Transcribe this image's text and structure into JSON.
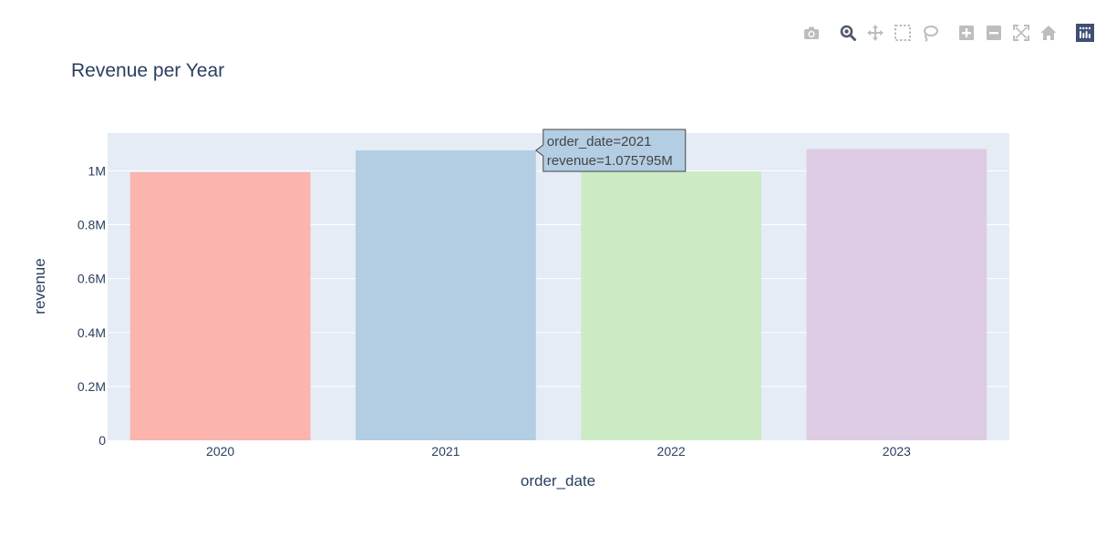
{
  "chart_data": {
    "type": "bar",
    "title": "Revenue per Year",
    "xlabel": "order_date",
    "ylabel": "revenue",
    "categories": [
      "2020",
      "2021",
      "2022",
      "2023"
    ],
    "values": [
      995000,
      1075795,
      998000,
      1081000
    ],
    "bar_colors": [
      "#fbb4ae",
      "#b3cde3",
      "#ccebc5",
      "#decbe4"
    ],
    "ylim": [
      0,
      1140000
    ],
    "y_ticks": [
      0,
      200000,
      400000,
      600000,
      800000,
      1000000
    ],
    "y_tick_labels": [
      "0",
      "0.2M",
      "0.4M",
      "0.6M",
      "0.8M",
      "1M"
    ],
    "grid": true,
    "plot_background": "#e5ecf6",
    "tooltip": {
      "category": "2021",
      "lines": [
        "order_date=2021",
        "revenue=1.075795M"
      ],
      "background": "#b3cde3"
    }
  },
  "modebar": {
    "buttons": [
      {
        "icon": "camera-icon",
        "title": "Download plot as a png"
      },
      {
        "icon": "zoom-icon",
        "title": "Zoom"
      },
      {
        "icon": "pan-icon",
        "title": "Pan"
      },
      {
        "icon": "box-select-icon",
        "title": "Box Select"
      },
      {
        "icon": "lasso-select-icon",
        "title": "Lasso Select"
      },
      {
        "icon": "zoom-in-icon",
        "title": "Zoom in"
      },
      {
        "icon": "zoom-out-icon",
        "title": "Zoom out"
      },
      {
        "icon": "autoscale-icon",
        "title": "Autoscale"
      },
      {
        "icon": "reset-axes-icon",
        "title": "Reset axes"
      },
      {
        "icon": "plotly-logo-icon",
        "title": "Produced with Plotly"
      }
    ]
  }
}
